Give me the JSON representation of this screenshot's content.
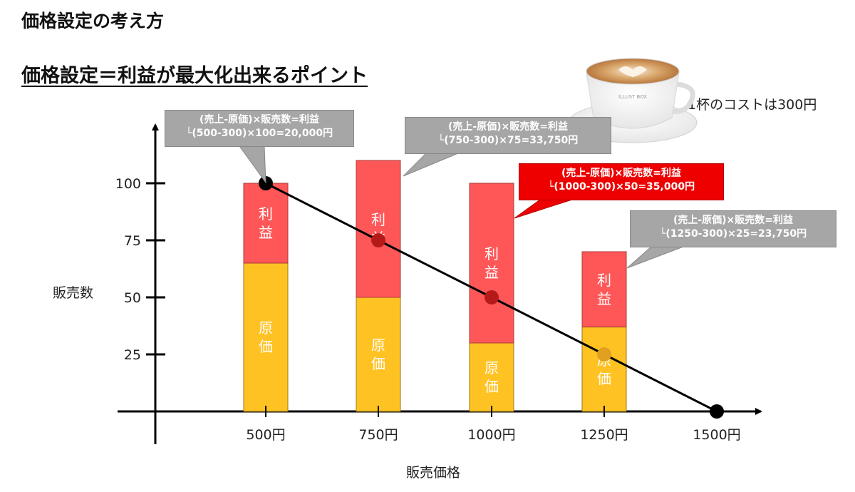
{
  "title": "価格設定の考え方",
  "subtitle": "価格設定＝利益が最大化出来るポイント",
  "cup": {
    "brand": "ILLUST BOX",
    "note": "1杯のコストは300円"
  },
  "colors": {
    "profit": "#ff5757",
    "cost": "#ffc223",
    "callout": "#a6a6a6",
    "highlight": "#ee0000",
    "line": "#000000"
  },
  "bar_labels": {
    "profit": "利\n益",
    "cost": "原\n価"
  },
  "callouts": [
    {
      "line1": "(売上-原価)×販売数=利益",
      "line2": "└(500-300)×100=20,000円",
      "highlight": false
    },
    {
      "line1": "(売上-原価)×販売数=利益",
      "line2": "└(750-300)×75=33,750円",
      "highlight": false
    },
    {
      "line1": "(売上-原価)×販売数=利益",
      "line2": "└(1000-300)×50=35,000円",
      "highlight": true
    },
    {
      "line1": "(売上-原価)×販売数=利益",
      "line2": "└(1250-300)×25=23,750円",
      "highlight": false
    }
  ],
  "chart_data": {
    "type": "bar",
    "xlabel": "販売価格",
    "ylabel": "販売数",
    "categories": [
      "500円",
      "750円",
      "1000円",
      "1250円",
      "1500円"
    ],
    "y_ticks": [
      "25",
      "50",
      "75",
      "100"
    ],
    "ylim": [
      0,
      125
    ],
    "stacked_bars": [
      {
        "category": "500円",
        "cost": 65,
        "profit": 35,
        "total": 100
      },
      {
        "category": "750円",
        "cost": 50,
        "profit": 60,
        "total": 110
      },
      {
        "category": "1000円",
        "cost": 30,
        "profit": 70,
        "total": 100
      },
      {
        "category": "1250円",
        "cost": 37,
        "profit": 33,
        "total": 70
      }
    ],
    "demand_line": {
      "x": [
        "500円",
        "750円",
        "1000円",
        "1250円",
        "1500円"
      ],
      "y": [
        100,
        75,
        50,
        25,
        0
      ]
    },
    "grid": false,
    "legend": "none"
  }
}
